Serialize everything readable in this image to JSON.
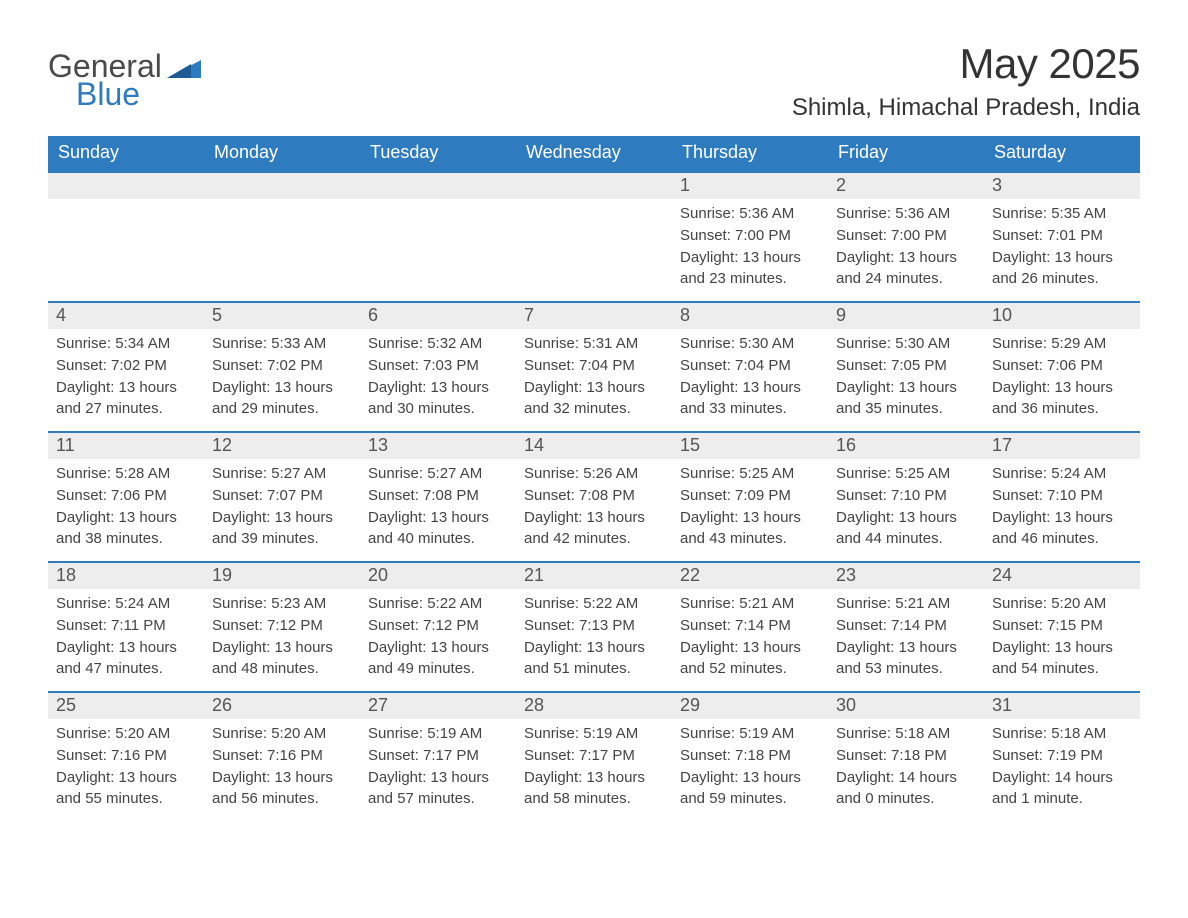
{
  "logo": {
    "text1": "General",
    "text2": "Blue",
    "color_general": "#4a4a4a",
    "color_blue": "#2f7bbf",
    "fontsize": 32
  },
  "title": {
    "month": "May 2025",
    "location": "Shimla, Himachal Pradesh, India",
    "month_fontsize": 42,
    "location_fontsize": 24,
    "color": "#333333"
  },
  "colors": {
    "header_bg": "#2f7bbf",
    "header_text": "#ffffff",
    "daynum_bg": "#ededed",
    "daynum_text": "#555555",
    "body_text": "#444444",
    "week_border": "#2f7bbf",
    "page_bg": "#ffffff"
  },
  "layout": {
    "columns": 7,
    "dow_fontsize": 18,
    "daynum_fontsize": 18,
    "body_fontsize": 15,
    "cell_min_height": 128
  },
  "dow": [
    "Sunday",
    "Monday",
    "Tuesday",
    "Wednesday",
    "Thursday",
    "Friday",
    "Saturday"
  ],
  "labels": {
    "sunrise": "Sunrise: ",
    "sunset": "Sunset: ",
    "daylight": "Daylight: "
  },
  "weeks": [
    [
      {
        "n": "",
        "sunrise": "",
        "sunset": "",
        "daylight": ""
      },
      {
        "n": "",
        "sunrise": "",
        "sunset": "",
        "daylight": ""
      },
      {
        "n": "",
        "sunrise": "",
        "sunset": "",
        "daylight": ""
      },
      {
        "n": "",
        "sunrise": "",
        "sunset": "",
        "daylight": ""
      },
      {
        "n": "1",
        "sunrise": "5:36 AM",
        "sunset": "7:00 PM",
        "daylight": "13 hours and 23 minutes."
      },
      {
        "n": "2",
        "sunrise": "5:36 AM",
        "sunset": "7:00 PM",
        "daylight": "13 hours and 24 minutes."
      },
      {
        "n": "3",
        "sunrise": "5:35 AM",
        "sunset": "7:01 PM",
        "daylight": "13 hours and 26 minutes."
      }
    ],
    [
      {
        "n": "4",
        "sunrise": "5:34 AM",
        "sunset": "7:02 PM",
        "daylight": "13 hours and 27 minutes."
      },
      {
        "n": "5",
        "sunrise": "5:33 AM",
        "sunset": "7:02 PM",
        "daylight": "13 hours and 29 minutes."
      },
      {
        "n": "6",
        "sunrise": "5:32 AM",
        "sunset": "7:03 PM",
        "daylight": "13 hours and 30 minutes."
      },
      {
        "n": "7",
        "sunrise": "5:31 AM",
        "sunset": "7:04 PM",
        "daylight": "13 hours and 32 minutes."
      },
      {
        "n": "8",
        "sunrise": "5:30 AM",
        "sunset": "7:04 PM",
        "daylight": "13 hours and 33 minutes."
      },
      {
        "n": "9",
        "sunrise": "5:30 AM",
        "sunset": "7:05 PM",
        "daylight": "13 hours and 35 minutes."
      },
      {
        "n": "10",
        "sunrise": "5:29 AM",
        "sunset": "7:06 PM",
        "daylight": "13 hours and 36 minutes."
      }
    ],
    [
      {
        "n": "11",
        "sunrise": "5:28 AM",
        "sunset": "7:06 PM",
        "daylight": "13 hours and 38 minutes."
      },
      {
        "n": "12",
        "sunrise": "5:27 AM",
        "sunset": "7:07 PM",
        "daylight": "13 hours and 39 minutes."
      },
      {
        "n": "13",
        "sunrise": "5:27 AM",
        "sunset": "7:08 PM",
        "daylight": "13 hours and 40 minutes."
      },
      {
        "n": "14",
        "sunrise": "5:26 AM",
        "sunset": "7:08 PM",
        "daylight": "13 hours and 42 minutes."
      },
      {
        "n": "15",
        "sunrise": "5:25 AM",
        "sunset": "7:09 PM",
        "daylight": "13 hours and 43 minutes."
      },
      {
        "n": "16",
        "sunrise": "5:25 AM",
        "sunset": "7:10 PM",
        "daylight": "13 hours and 44 minutes."
      },
      {
        "n": "17",
        "sunrise": "5:24 AM",
        "sunset": "7:10 PM",
        "daylight": "13 hours and 46 minutes."
      }
    ],
    [
      {
        "n": "18",
        "sunrise": "5:24 AM",
        "sunset": "7:11 PM",
        "daylight": "13 hours and 47 minutes."
      },
      {
        "n": "19",
        "sunrise": "5:23 AM",
        "sunset": "7:12 PM",
        "daylight": "13 hours and 48 minutes."
      },
      {
        "n": "20",
        "sunrise": "5:22 AM",
        "sunset": "7:12 PM",
        "daylight": "13 hours and 49 minutes."
      },
      {
        "n": "21",
        "sunrise": "5:22 AM",
        "sunset": "7:13 PM",
        "daylight": "13 hours and 51 minutes."
      },
      {
        "n": "22",
        "sunrise": "5:21 AM",
        "sunset": "7:14 PM",
        "daylight": "13 hours and 52 minutes."
      },
      {
        "n": "23",
        "sunrise": "5:21 AM",
        "sunset": "7:14 PM",
        "daylight": "13 hours and 53 minutes."
      },
      {
        "n": "24",
        "sunrise": "5:20 AM",
        "sunset": "7:15 PM",
        "daylight": "13 hours and 54 minutes."
      }
    ],
    [
      {
        "n": "25",
        "sunrise": "5:20 AM",
        "sunset": "7:16 PM",
        "daylight": "13 hours and 55 minutes."
      },
      {
        "n": "26",
        "sunrise": "5:20 AM",
        "sunset": "7:16 PM",
        "daylight": "13 hours and 56 minutes."
      },
      {
        "n": "27",
        "sunrise": "5:19 AM",
        "sunset": "7:17 PM",
        "daylight": "13 hours and 57 minutes."
      },
      {
        "n": "28",
        "sunrise": "5:19 AM",
        "sunset": "7:17 PM",
        "daylight": "13 hours and 58 minutes."
      },
      {
        "n": "29",
        "sunrise": "5:19 AM",
        "sunset": "7:18 PM",
        "daylight": "13 hours and 59 minutes."
      },
      {
        "n": "30",
        "sunrise": "5:18 AM",
        "sunset": "7:18 PM",
        "daylight": "14 hours and 0 minutes."
      },
      {
        "n": "31",
        "sunrise": "5:18 AM",
        "sunset": "7:19 PM",
        "daylight": "14 hours and 1 minute."
      }
    ]
  ]
}
